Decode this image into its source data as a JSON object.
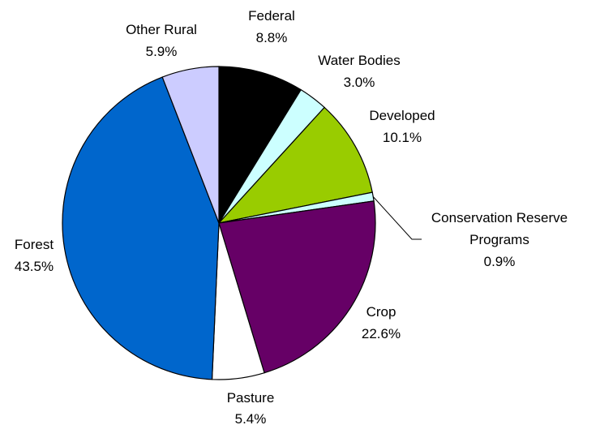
{
  "chart_data": {
    "type": "pie",
    "title": "",
    "start_angle_deg": 0,
    "direction": "clockwise",
    "slices": [
      {
        "label": "Federal",
        "value": 8.8,
        "pct_label": "8.8%",
        "color": "#000000"
      },
      {
        "label": "Water Bodies",
        "value": 3.0,
        "pct_label": "3.0%",
        "color": "#ccffff"
      },
      {
        "label": "Developed",
        "value": 10.1,
        "pct_label": "10.1%",
        "color": "#99cc00"
      },
      {
        "label": [
          "Conservation Reserve",
          "Programs"
        ],
        "value": 0.9,
        "pct_label": "0.9%",
        "color": "#ccffff"
      },
      {
        "label": "Crop",
        "value": 22.6,
        "pct_label": "22.6%",
        "color": "#660066"
      },
      {
        "label": "Pasture",
        "value": 5.4,
        "pct_label": "5.4%",
        "color": "#ffffff"
      },
      {
        "label": "Forest",
        "value": 43.5,
        "pct_label": "43.5%",
        "color": "#0066cc"
      },
      {
        "label": "Other Rural",
        "value": 5.9,
        "pct_label": "5.9%",
        "color": "#ccccff"
      }
    ]
  }
}
